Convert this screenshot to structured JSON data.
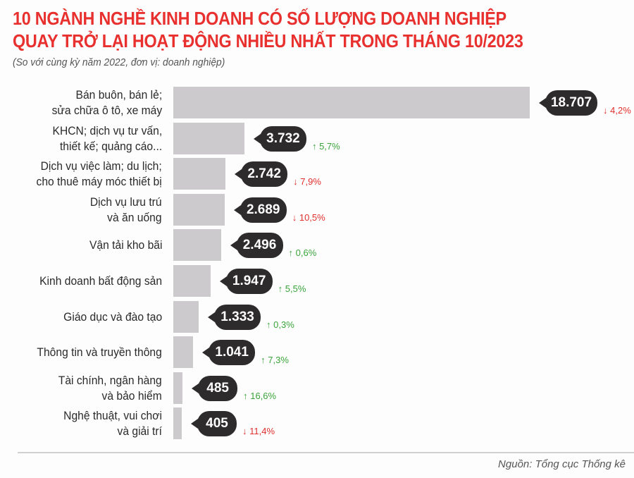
{
  "header": {
    "title_line1": "10 NGÀNH NGHỀ KINH DOANH CÓ SỐ LƯỢNG DOANH NGHIỆP",
    "title_line2": "QUAY TRỞ LẠI HOẠT ĐỘNG NHIỀU NHẤT TRONG THÁNG 10/2023",
    "subtitle": "(So với cùng kỳ năm 2022, đơn vị: doanh nghiệp)"
  },
  "footer": {
    "source": "Nguồn: Tổng cục Thống kê"
  },
  "colors": {
    "title": "#e8302e",
    "bar": "#cdcacd",
    "bubble": "#2d2b2c",
    "up": "#3aa43a",
    "down": "#e0302e"
  },
  "chart_data": {
    "type": "bar",
    "orientation": "horizontal",
    "title": "10 ngành nghề kinh doanh có số lượng doanh nghiệp quay trở lại hoạt động nhiều nhất trong tháng 10/2023",
    "subtitle": "(So với cùng kỳ năm 2022, đơn vị: doanh nghiệp)",
    "xlabel": "",
    "ylabel": "",
    "grid": false,
    "categories": [
      "Bán buôn, bán lẻ;\nsửa chữa ô tô, xe máy",
      "KHCN; dịch vụ tư vấn,\nthiết kế; quảng cáo...",
      "Dịch vụ việc làm; du lịch;\ncho thuê máy móc thiết bị",
      "Dịch vụ lưu trú\nvà ăn uống",
      "Vận tải kho bãi",
      "Kinh doanh bất động sản",
      "Giáo dục và đào tạo",
      "Thông tin và truyền thông",
      "Tài chính, ngân hàng\nvà bảo hiểm",
      "Nghệ thuật, vui chơi\nvà giải trí"
    ],
    "values": [
      18707,
      3732,
      2742,
      2689,
      2496,
      1947,
      1333,
      1041,
      485,
      405
    ],
    "value_labels": [
      "18.707",
      "3.732",
      "2.742",
      "2.689",
      "2.496",
      "1.947",
      "1.333",
      "1.041",
      "485",
      "405"
    ],
    "changes": [
      {
        "direction": "down",
        "label": "4,2%"
      },
      {
        "direction": "up",
        "label": "5,7%"
      },
      {
        "direction": "down",
        "label": "7,9%"
      },
      {
        "direction": "down",
        "label": "10,5%"
      },
      {
        "direction": "up",
        "label": "0,6%"
      },
      {
        "direction": "up",
        "label": "5,5%"
      },
      {
        "direction": "up",
        "label": "0,3%"
      },
      {
        "direction": "up",
        "label": "7,3%"
      },
      {
        "direction": "up",
        "label": "16,6%"
      },
      {
        "direction": "down",
        "label": "11,4%"
      }
    ],
    "source": "Nguồn: Tổng cục Thống kê"
  }
}
